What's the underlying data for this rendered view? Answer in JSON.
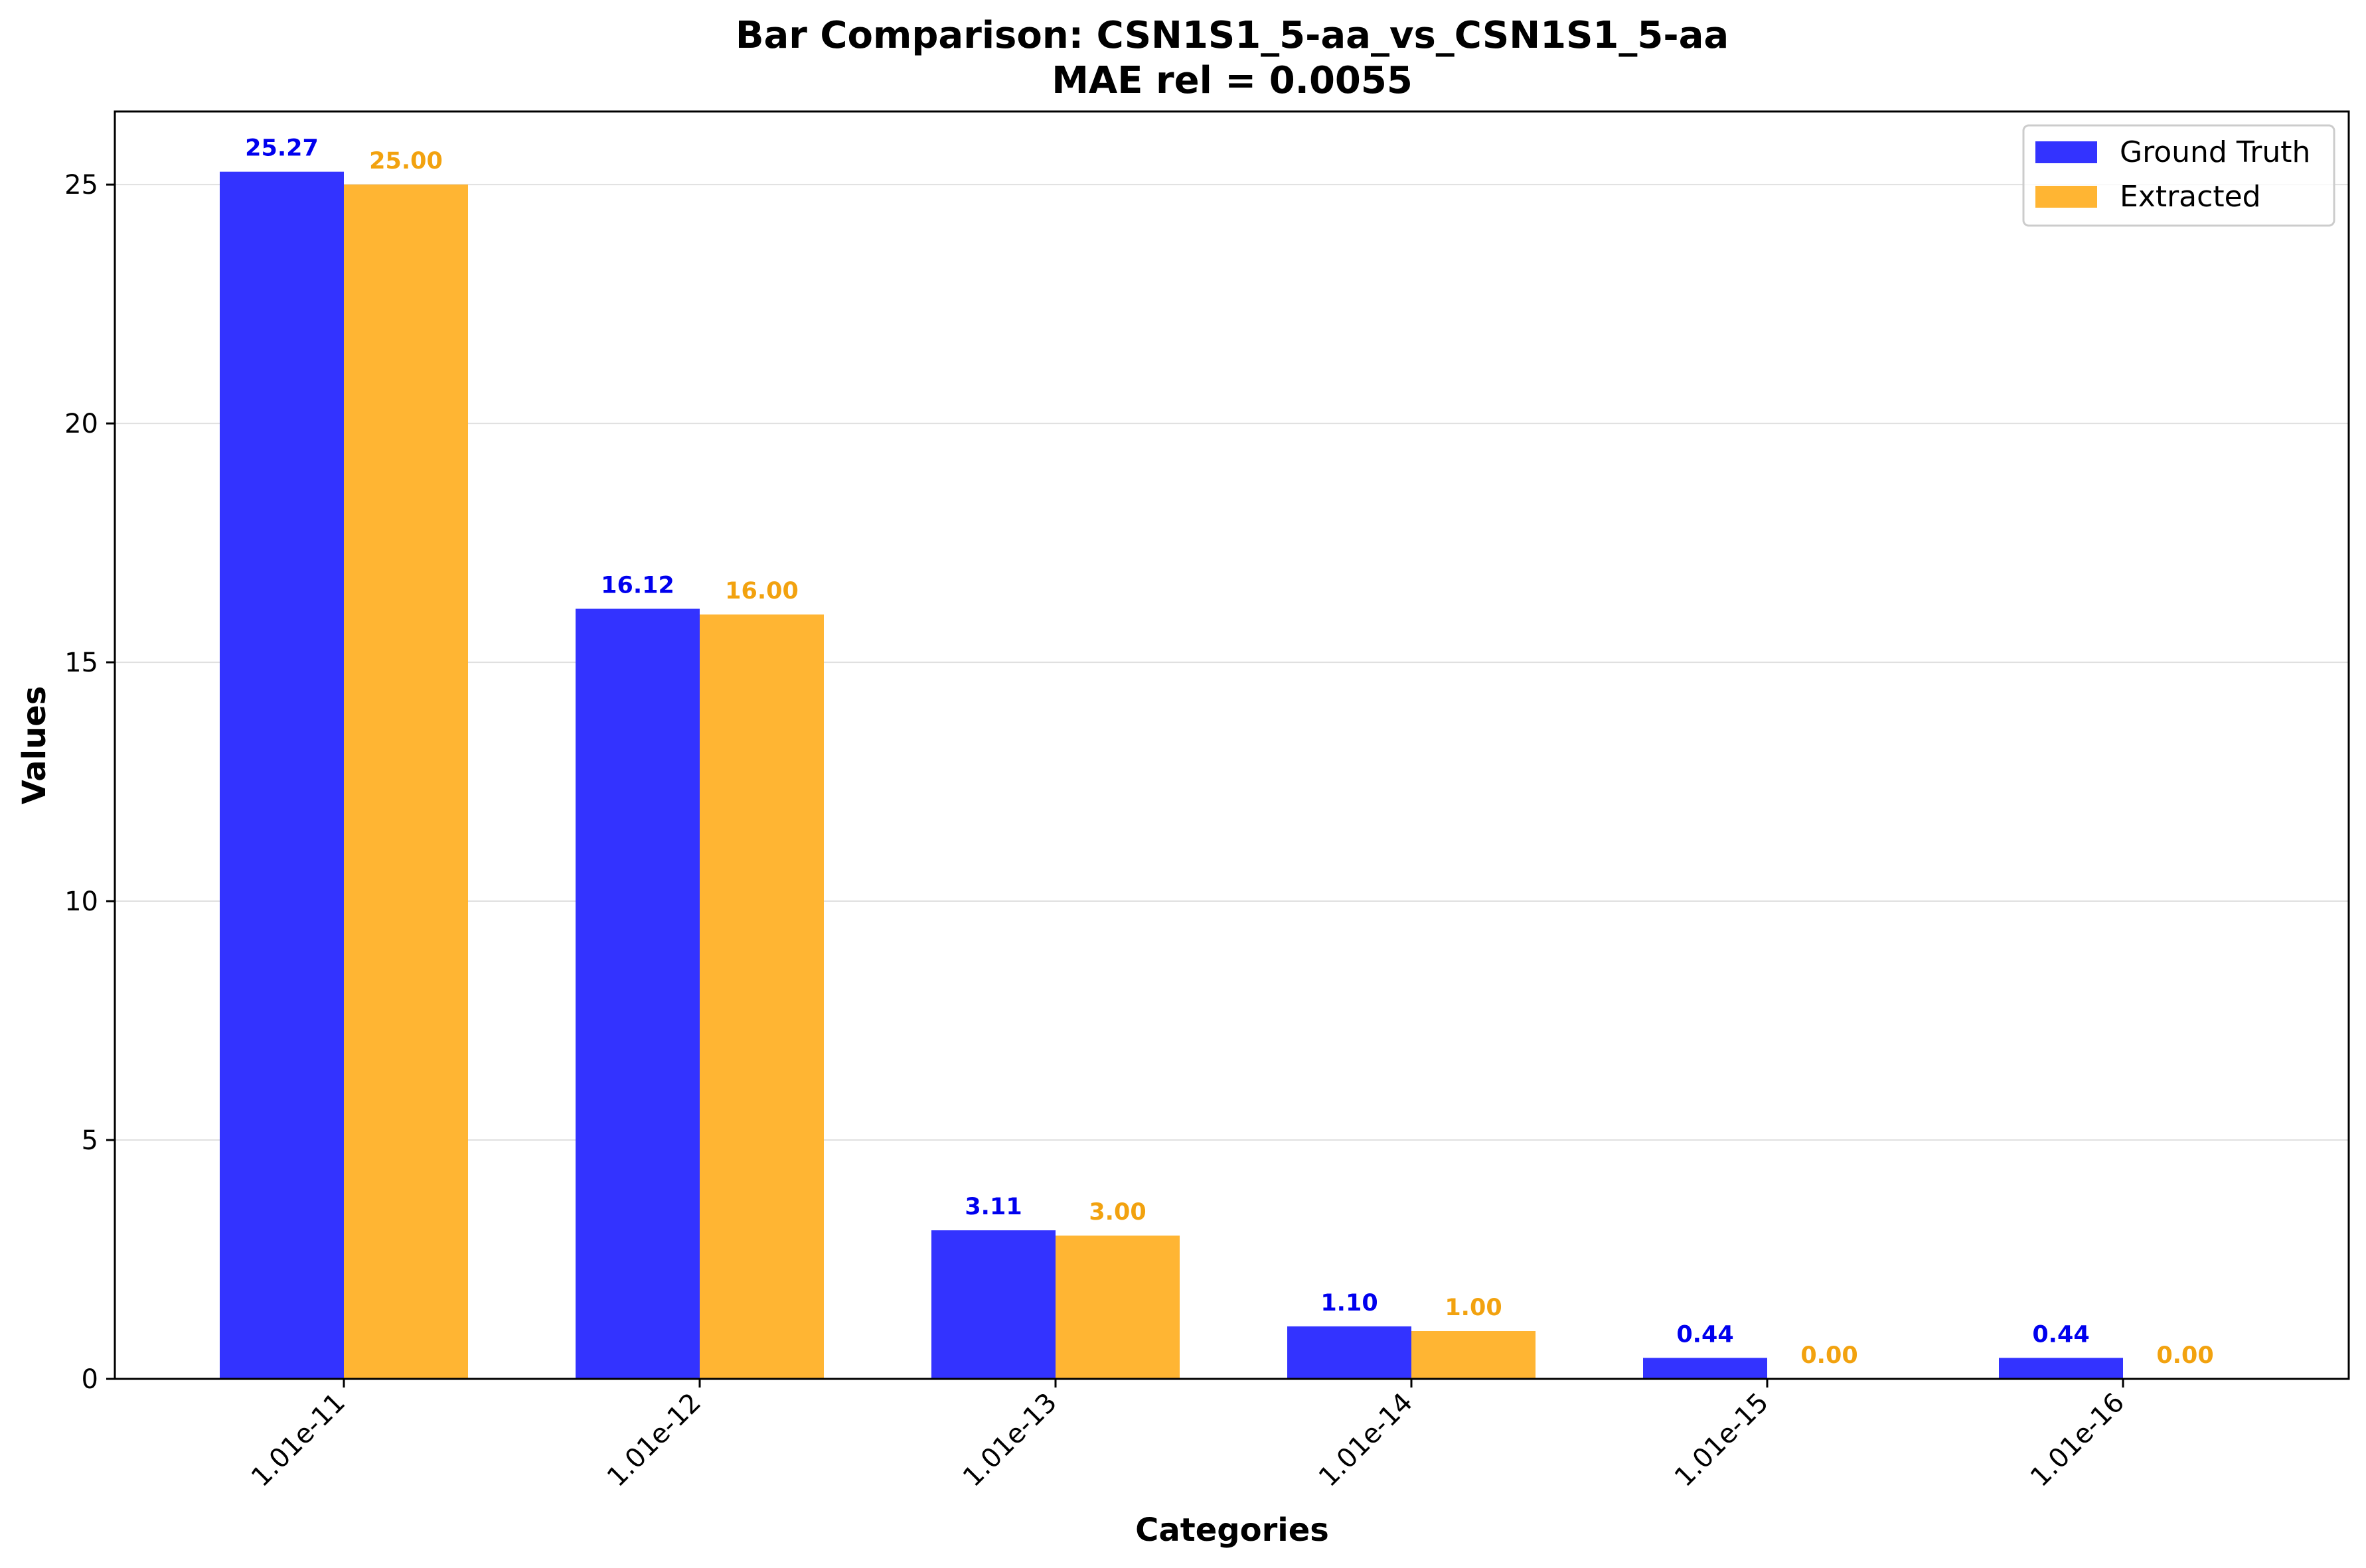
{
  "chart_data": {
    "type": "bar",
    "title": "Bar Comparison: CSN1S1_5-aa_vs_CSN1S1_5-aa",
    "subtitle": "MAE rel = 0.0055",
    "xlabel": "Categories",
    "ylabel": "Values",
    "categories": [
      "1.01e-11",
      "1.01e-12",
      "1.01e-13",
      "1.01e-14",
      "1.01e-15",
      "1.01e-16"
    ],
    "series": [
      {
        "name": "Ground Truth",
        "color": "#3333ff",
        "label_color": "#0000ee",
        "values": [
          25.27,
          16.12,
          3.11,
          1.1,
          0.44,
          0.44
        ],
        "labels": [
          "25.27",
          "16.12",
          "3.11",
          "1.10",
          "0.44",
          "0.44"
        ]
      },
      {
        "name": "Extracted",
        "color": "#ffb533",
        "label_color": "#f2a20f",
        "values": [
          25.0,
          16.0,
          3.0,
          1.0,
          0.0,
          0.0
        ],
        "labels": [
          "25.00",
          "16.00",
          "3.00",
          "1.00",
          "0.00",
          "0.00"
        ]
      }
    ],
    "yticks": [
      0,
      5,
      10,
      15,
      20,
      25
    ],
    "ytick_labels": [
      "0",
      "5",
      "10",
      "15",
      "20",
      "25"
    ],
    "ylim": [
      0,
      26.53
    ],
    "grid": "horizontal",
    "legend_position": "top-right"
  }
}
